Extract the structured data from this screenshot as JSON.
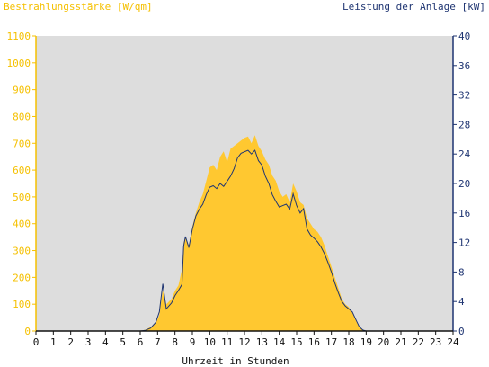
{
  "chart_data": {
    "type": "area",
    "title_left": "Bestrahlungsstärke [W/qm]",
    "title_right": "Leistung der Anlage [kW]",
    "xlabel": "Uhrzeit in Stunden",
    "xlim": [
      0,
      24
    ],
    "x_ticks": [
      "0",
      "1",
      "2",
      "3",
      "4",
      "5",
      "6",
      "7",
      "8",
      "9",
      "10",
      "11",
      "12",
      "13",
      "14",
      "15",
      "16",
      "17",
      "18",
      "19",
      "20",
      "21",
      "22",
      "23",
      "24"
    ],
    "ylim_left": [
      0,
      1100
    ],
    "y_ticks_left": [
      "0",
      "100",
      "200",
      "300",
      "400",
      "500",
      "600",
      "700",
      "800",
      "900",
      "1000",
      "1100"
    ],
    "ylim_right": [
      0,
      40
    ],
    "y_ticks_right": [
      "0",
      "4",
      "8",
      "12",
      "16",
      "20",
      "24",
      "28",
      "32",
      "36",
      "40"
    ],
    "grid": false,
    "colors": {
      "irradiance": "#ffc830",
      "power": "#1f3572",
      "plot_bg": "#dddddd",
      "left_axis": "#f5c000",
      "right_axis": "#1f3572"
    },
    "series": [
      {
        "axis": "left",
        "style": "area",
        "x": [
          0,
          6.0,
          6.3,
          6.6,
          6.9,
          7.1,
          7.2,
          7.3,
          7.5,
          7.8,
          8.0,
          8.2,
          8.4,
          8.5,
          8.6,
          8.8,
          9.0,
          9.2,
          9.4,
          9.6,
          9.8,
          10.0,
          10.2,
          10.4,
          10.6,
          10.8,
          11.0,
          11.2,
          11.4,
          11.6,
          11.8,
          12.0,
          12.2,
          12.4,
          12.6,
          12.8,
          13.0,
          13.2,
          13.4,
          13.6,
          13.8,
          14.0,
          14.2,
          14.4,
          14.6,
          14.8,
          15.0,
          15.2,
          15.4,
          15.6,
          15.8,
          16.0,
          16.2,
          16.4,
          16.6,
          16.8,
          17.0,
          17.2,
          17.4,
          17.6,
          17.8,
          18.0,
          18.2,
          18.4,
          18.6,
          18.8,
          19.0,
          24
        ],
        "values": [
          0,
          0,
          5,
          15,
          30,
          60,
          110,
          150,
          100,
          120,
          150,
          170,
          230,
          330,
          350,
          320,
          390,
          440,
          480,
          510,
          560,
          610,
          620,
          600,
          650,
          670,
          630,
          680,
          690,
          700,
          710,
          720,
          725,
          700,
          730,
          690,
          670,
          640,
          620,
          580,
          560,
          520,
          500,
          510,
          480,
          550,
          520,
          480,
          470,
          420,
          400,
          380,
          370,
          350,
          320,
          280,
          240,
          200,
          160,
          120,
          100,
          90,
          70,
          40,
          15,
          5,
          0,
          0
        ]
      },
      {
        "axis": "right",
        "style": "line",
        "x": [
          0,
          6.0,
          6.3,
          6.6,
          6.9,
          7.1,
          7.2,
          7.3,
          7.5,
          7.8,
          8.0,
          8.2,
          8.4,
          8.5,
          8.6,
          8.8,
          9.0,
          9.2,
          9.4,
          9.6,
          9.8,
          10.0,
          10.2,
          10.4,
          10.6,
          10.8,
          11.0,
          11.2,
          11.4,
          11.6,
          11.8,
          12.0,
          12.2,
          12.4,
          12.6,
          12.8,
          13.0,
          13.2,
          13.4,
          13.6,
          13.8,
          14.0,
          14.2,
          14.4,
          14.6,
          14.8,
          15.0,
          15.2,
          15.4,
          15.6,
          15.8,
          16.0,
          16.2,
          16.4,
          16.6,
          16.8,
          17.0,
          17.2,
          17.4,
          17.6,
          17.8,
          18.0,
          18.2,
          18.4,
          18.6,
          18.8,
          19.0,
          24
        ],
        "values": [
          0,
          0,
          0.1,
          0.4,
          1.2,
          2.6,
          4.5,
          6.4,
          3.0,
          3.8,
          4.8,
          5.5,
          6.3,
          11.5,
          12.8,
          11.3,
          13.8,
          15.6,
          16.5,
          17.2,
          18.5,
          19.5,
          19.7,
          19.3,
          20.0,
          19.6,
          20.3,
          21.0,
          22.0,
          23.5,
          24.1,
          24.3,
          24.5,
          24.0,
          24.5,
          23.1,
          22.5,
          21.0,
          20.0,
          18.5,
          17.6,
          16.8,
          17.0,
          17.2,
          16.5,
          18.6,
          17.0,
          16.0,
          16.6,
          13.8,
          13.0,
          12.6,
          12.1,
          11.4,
          10.5,
          9.3,
          8.0,
          6.5,
          5.2,
          4.0,
          3.4,
          3.0,
          2.6,
          1.6,
          0.6,
          0.15,
          0,
          0
        ]
      }
    ]
  }
}
